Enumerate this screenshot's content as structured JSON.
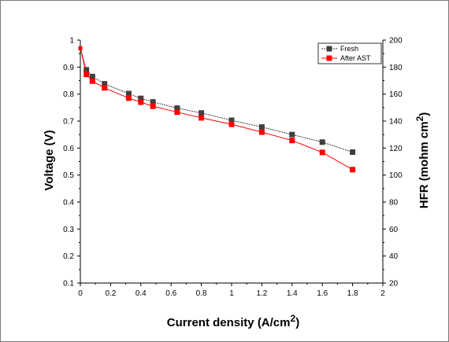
{
  "chart_data": {
    "type": "line",
    "xlabel_main": "Current density (A/cm",
    "xlabel_sup": "2",
    "xlabel_tail": ")",
    "ylabel": "Voltage (V)",
    "y2label_main": "HFR (mohm cm",
    "y2label_sup": "2",
    "y2label_tail": ")",
    "xlim": [
      0,
      2
    ],
    "ylim": [
      0.1,
      1.0
    ],
    "y2lim": [
      20,
      200
    ],
    "x_ticks": [
      "0",
      "0.2",
      "0.4",
      "0.6",
      "0.8",
      "1",
      "1.2",
      "1.4",
      "1.6",
      "1.8",
      "2"
    ],
    "y_ticks": [
      "0.1",
      "0.2",
      "0.3",
      "0.4",
      "0.5",
      "0.6",
      "0.7",
      "0.8",
      "0.9",
      "1"
    ],
    "y2_ticks": [
      "20",
      "40",
      "60",
      "80",
      "100",
      "120",
      "140",
      "160",
      "180",
      "200"
    ],
    "grid": false,
    "legend_position": "top-right",
    "series": [
      {
        "name": "Fresh",
        "color": "#404040",
        "marker": "square",
        "x": [
          0.0,
          0.04,
          0.08,
          0.16,
          0.32,
          0.4,
          0.48,
          0.64,
          0.8,
          1.0,
          1.2,
          1.4,
          1.6,
          1.8
        ],
        "y": [
          0.97,
          0.89,
          0.865,
          0.838,
          0.802,
          0.784,
          0.771,
          0.748,
          0.73,
          0.703,
          0.678,
          0.65,
          0.622,
          0.585
        ]
      },
      {
        "name": "After AST",
        "color": "#ff0000",
        "marker": "square",
        "x": [
          0.0,
          0.04,
          0.08,
          0.16,
          0.32,
          0.4,
          0.48,
          0.64,
          0.8,
          1.0,
          1.2,
          1.4,
          1.6,
          1.8
        ],
        "y": [
          0.97,
          0.873,
          0.848,
          0.823,
          0.785,
          0.77,
          0.755,
          0.733,
          0.712,
          0.688,
          0.659,
          0.628,
          0.584,
          0.52
        ]
      }
    ]
  }
}
